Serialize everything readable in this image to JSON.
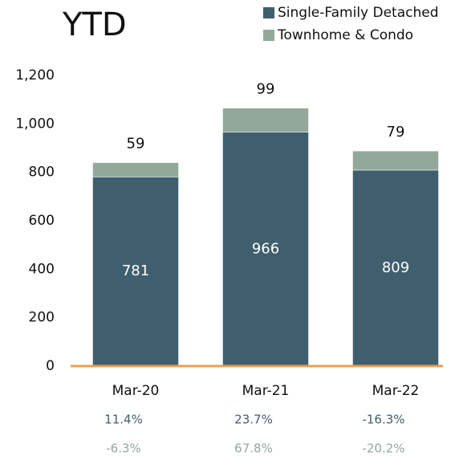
{
  "chart_data": {
    "type": "stacked_bar",
    "title": "YTD",
    "categories": [
      "Mar-20",
      "Mar-21",
      "Mar-22"
    ],
    "series": [
      {
        "name": "Single-Family Detached",
        "color": "#3f5f6e",
        "values": [
          781,
          966,
          809
        ],
        "change_labels": [
          "11.4%",
          "23.7%",
          "-16.3%"
        ]
      },
      {
        "name": "Townhome & Condo",
        "color": "#93a89a",
        "values": [
          59,
          99,
          79
        ],
        "change_labels": [
          "-6.3%",
          "67.8%",
          "-20.2%"
        ]
      }
    ],
    "ylim": [
      0,
      1200
    ],
    "yticks": [
      0,
      200,
      400,
      600,
      800,
      {
        "value": 1000,
        "label": "1,000"
      },
      {
        "value": 1200,
        "label": "1,200"
      }
    ],
    "grid": false,
    "axis_color": "#e8a050"
  }
}
